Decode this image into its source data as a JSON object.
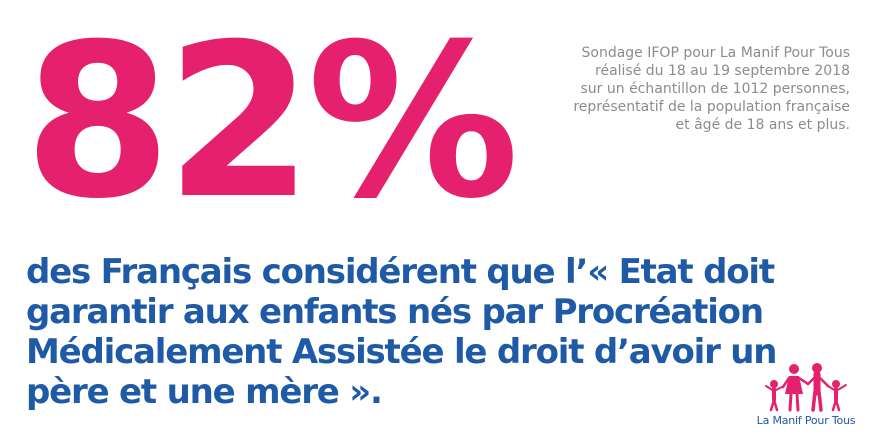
{
  "headline": {
    "stat": "82%"
  },
  "source_note": "Sondage IFOP pour La Manif Pour Tous réalisé du 18 au 19 septembre 2018 sur un échantillon de 1012 personnes, représentatif de la population française et âgé de 18 ans et plus.",
  "statement": "des Français considérent que l’« Etat doit garantir aux enfants nés par Procréation Médicalement Assistée le droit d’avoir un père et une mère ».",
  "logo": {
    "text": "La Manif Pour Tous",
    "icon": "family-icon",
    "color": "#e5216f"
  },
  "colors": {
    "accent": "#e5216f",
    "statement": "#1f5aa6",
    "source": "#8a8d90"
  }
}
